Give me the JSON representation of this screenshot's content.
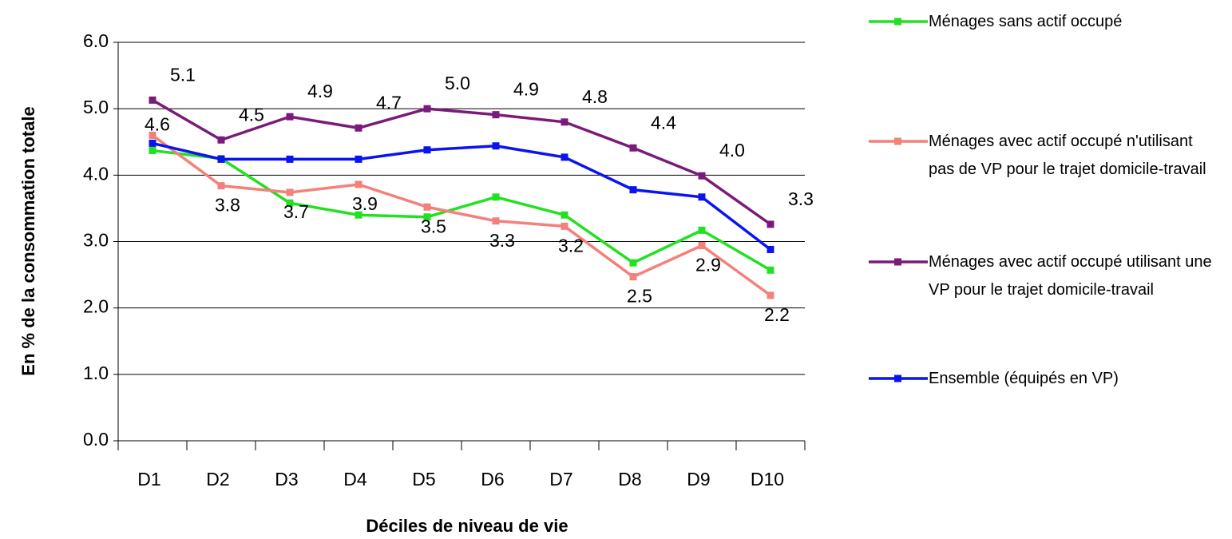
{
  "chart_data": {
    "type": "line",
    "y_label": "En % de la consommation totale",
    "x_label": "Déciles de niveau de vie",
    "categories": [
      "D1",
      "D2",
      "D3",
      "D4",
      "D5",
      "D6",
      "D7",
      "D8",
      "D9",
      "D10"
    ],
    "series": [
      {
        "name": "Ménages sans actif occupé",
        "color": "#22e022",
        "values": [
          4.37,
          4.25,
          3.58,
          3.4,
          3.37,
          3.67,
          3.4,
          2.68,
          3.17,
          2.57
        ]
      },
      {
        "name": "Ménages avec actif occupé n'utilisant pas de VP pour le trajet domicile-travail",
        "color": "#f4807a",
        "values": [
          4.6,
          3.84,
          3.74,
          3.86,
          3.52,
          3.31,
          3.23,
          2.47,
          2.94,
          2.19
        ],
        "value_labels": [
          "4.6",
          "3.8",
          "3.7",
          "3.9",
          "3.5",
          "3.3",
          "3.2",
          "2.5",
          "2.9",
          "2.2"
        ]
      },
      {
        "name": "Ménages avec actif occupé utilisant une VP pour le trajet domicile-travail",
        "color": "#7a1a7a",
        "values": [
          5.13,
          4.53,
          4.88,
          4.71,
          5.0,
          4.91,
          4.8,
          4.41,
          3.99,
          3.26
        ],
        "value_labels": [
          "5.1",
          "4.5",
          "4.9",
          "4.7",
          "5.0",
          "4.9",
          "4.8",
          "4.4",
          "4.0",
          "3.3"
        ]
      },
      {
        "name": "Ensemble (équipés en VP)",
        "color": "#0a14f0",
        "values": [
          4.48,
          4.24,
          4.24,
          4.24,
          4.38,
          4.44,
          4.27,
          3.78,
          3.67,
          2.88
        ]
      }
    ],
    "ylim": [
      0,
      6
    ],
    "yticks": [
      {
        "value": 0,
        "label": "0.0"
      },
      {
        "value": 1,
        "label": "1.0"
      },
      {
        "value": 2,
        "label": "2.0"
      },
      {
        "value": 3,
        "label": "3.0"
      },
      {
        "value": 4,
        "label": "4.0"
      },
      {
        "value": 5,
        "label": "5.0"
      },
      {
        "value": 6,
        "label": "6.0"
      }
    ],
    "grid": true
  }
}
